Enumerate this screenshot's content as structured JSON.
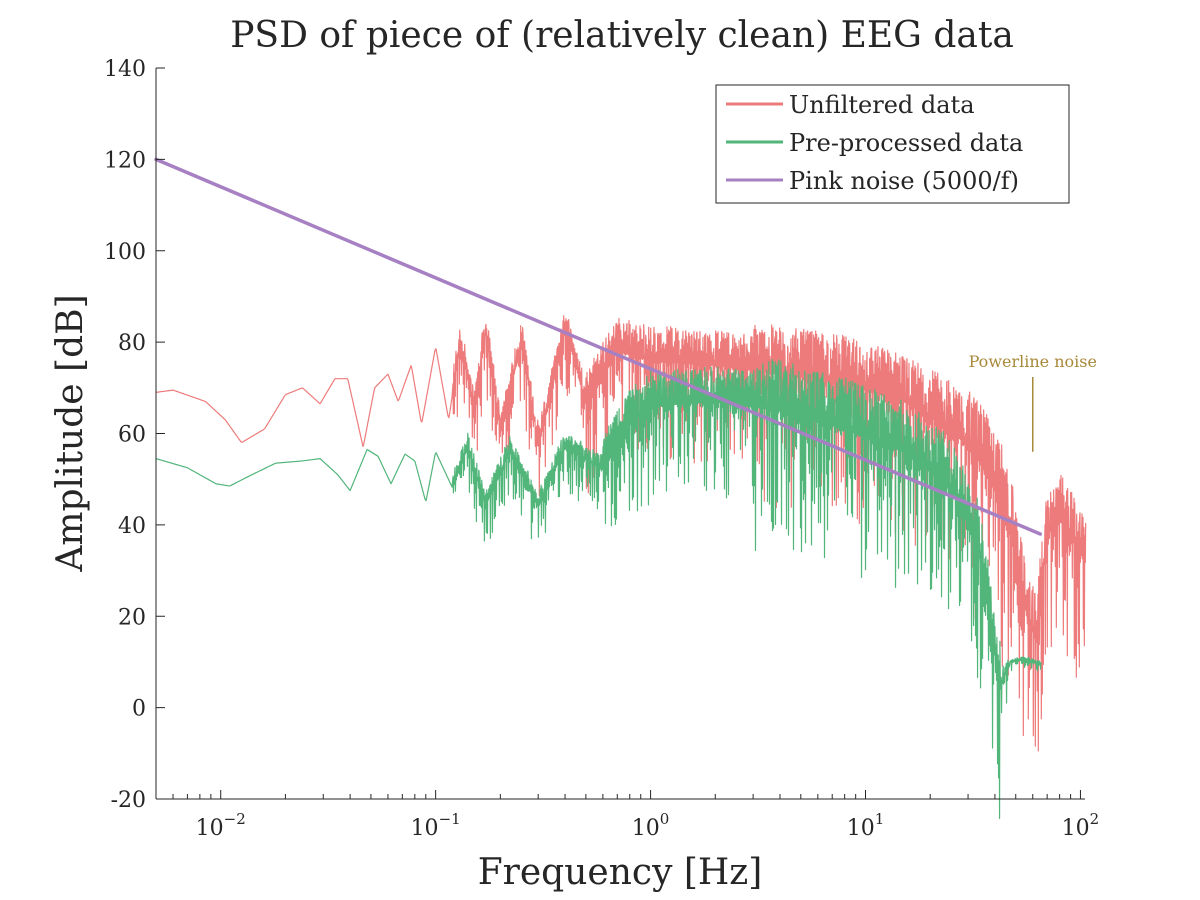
{
  "chart_data": {
    "type": "line",
    "title": "PSD of piece of (relatively clean) EEG data",
    "xlabel": "Frequency [Hz]",
    "ylabel": "Amplitude [dB]",
    "xscale": "log",
    "xlim": [
      0.005,
      105
    ],
    "ylim": [
      -20,
      140
    ],
    "yticks": [
      -20,
      0,
      20,
      40,
      60,
      80,
      100,
      120,
      140
    ],
    "xticks": [
      {
        "value": 0.01,
        "base": "10",
        "exp": "−2"
      },
      {
        "value": 0.1,
        "base": "10",
        "exp": "−1"
      },
      {
        "value": 1,
        "base": "10",
        "exp": "0"
      },
      {
        "value": 10,
        "base": "10",
        "exp": "1"
      },
      {
        "value": 100,
        "base": "10",
        "exp": "2"
      }
    ],
    "grid": false,
    "legend_position": "top-right",
    "series": [
      {
        "name": "Unfiltered data",
        "color": "#ee7b7b",
        "envelope": [
          {
            "x": 0.005,
            "y": 69
          },
          {
            "x": 0.006,
            "y": 69.5
          },
          {
            "x": 0.0085,
            "y": 67
          },
          {
            "x": 0.0105,
            "y": 63
          },
          {
            "x": 0.0125,
            "y": 58
          },
          {
            "x": 0.016,
            "y": 61
          },
          {
            "x": 0.02,
            "y": 68.5
          },
          {
            "x": 0.024,
            "y": 70
          },
          {
            "x": 0.029,
            "y": 66.5
          },
          {
            "x": 0.034,
            "y": 72
          },
          {
            "x": 0.039,
            "y": 72
          },
          {
            "x": 0.046,
            "y": 57
          },
          {
            "x": 0.052,
            "y": 70
          },
          {
            "x": 0.06,
            "y": 73
          },
          {
            "x": 0.067,
            "y": 67
          },
          {
            "x": 0.077,
            "y": 75
          },
          {
            "x": 0.086,
            "y": 62
          },
          {
            "x": 0.1,
            "y": 79
          },
          {
            "x": 0.115,
            "y": 63
          },
          {
            "x": 0.13,
            "y": 80
          },
          {
            "x": 0.15,
            "y": 64
          },
          {
            "x": 0.17,
            "y": 82
          },
          {
            "x": 0.2,
            "y": 60
          },
          {
            "x": 0.25,
            "y": 80
          },
          {
            "x": 0.3,
            "y": 57
          },
          {
            "x": 0.4,
            "y": 83
          },
          {
            "x": 0.5,
            "y": 66
          },
          {
            "x": 0.7,
            "y": 78
          },
          {
            "x": 1,
            "y": 76
          },
          {
            "x": 2,
            "y": 75
          },
          {
            "x": 4,
            "y": 73
          },
          {
            "x": 8,
            "y": 71
          },
          {
            "x": 15,
            "y": 67
          },
          {
            "x": 25,
            "y": 61
          },
          {
            "x": 35,
            "y": 53
          },
          {
            "x": 45,
            "y": 42
          },
          {
            "x": 55,
            "y": 22
          },
          {
            "x": 62,
            "y": 14
          },
          {
            "x": 70,
            "y": 38
          },
          {
            "x": 80,
            "y": 41
          },
          {
            "x": 90,
            "y": 37
          },
          {
            "x": 105,
            "y": 32
          }
        ]
      },
      {
        "name": "Pre-processed data",
        "color": "#52b57a",
        "envelope": [
          {
            "x": 0.005,
            "y": 54.5
          },
          {
            "x": 0.007,
            "y": 52.5
          },
          {
            "x": 0.0095,
            "y": 49
          },
          {
            "x": 0.011,
            "y": 48.5
          },
          {
            "x": 0.014,
            "y": 51
          },
          {
            "x": 0.018,
            "y": 53.5
          },
          {
            "x": 0.024,
            "y": 54
          },
          {
            "x": 0.029,
            "y": 54.5
          },
          {
            "x": 0.035,
            "y": 51
          },
          {
            "x": 0.04,
            "y": 47.5
          },
          {
            "x": 0.048,
            "y": 56.5
          },
          {
            "x": 0.054,
            "y": 55
          },
          {
            "x": 0.062,
            "y": 49
          },
          {
            "x": 0.072,
            "y": 55.5
          },
          {
            "x": 0.08,
            "y": 54
          },
          {
            "x": 0.09,
            "y": 45
          },
          {
            "x": 0.1,
            "y": 56
          },
          {
            "x": 0.12,
            "y": 48
          },
          {
            "x": 0.14,
            "y": 57
          },
          {
            "x": 0.17,
            "y": 44
          },
          {
            "x": 0.22,
            "y": 56
          },
          {
            "x": 0.3,
            "y": 44
          },
          {
            "x": 0.4,
            "y": 57
          },
          {
            "x": 0.6,
            "y": 52
          },
          {
            "x": 0.8,
            "y": 62
          },
          {
            "x": 1,
            "y": 66
          },
          {
            "x": 2,
            "y": 67
          },
          {
            "x": 4,
            "y": 65
          },
          {
            "x": 8,
            "y": 61
          },
          {
            "x": 15,
            "y": 56
          },
          {
            "x": 25,
            "y": 48
          },
          {
            "x": 33,
            "y": 36
          },
          {
            "x": 38,
            "y": 18
          },
          {
            "x": 42,
            "y": 4
          },
          {
            "x": 47,
            "y": 10
          },
          {
            "x": 55,
            "y": 10.5
          },
          {
            "x": 65,
            "y": 9.5
          }
        ]
      },
      {
        "name": "Pink noise (5000/f)",
        "color": "#a680c3",
        "x": [
          0.005,
          65
        ],
        "y": [
          120,
          38
        ]
      }
    ],
    "annotations": [
      {
        "text": "Powerline noise",
        "x": 60,
        "y": 75,
        "color": "#a8893a",
        "arrow_to": {
          "x": 60,
          "y": 56
        }
      }
    ]
  }
}
